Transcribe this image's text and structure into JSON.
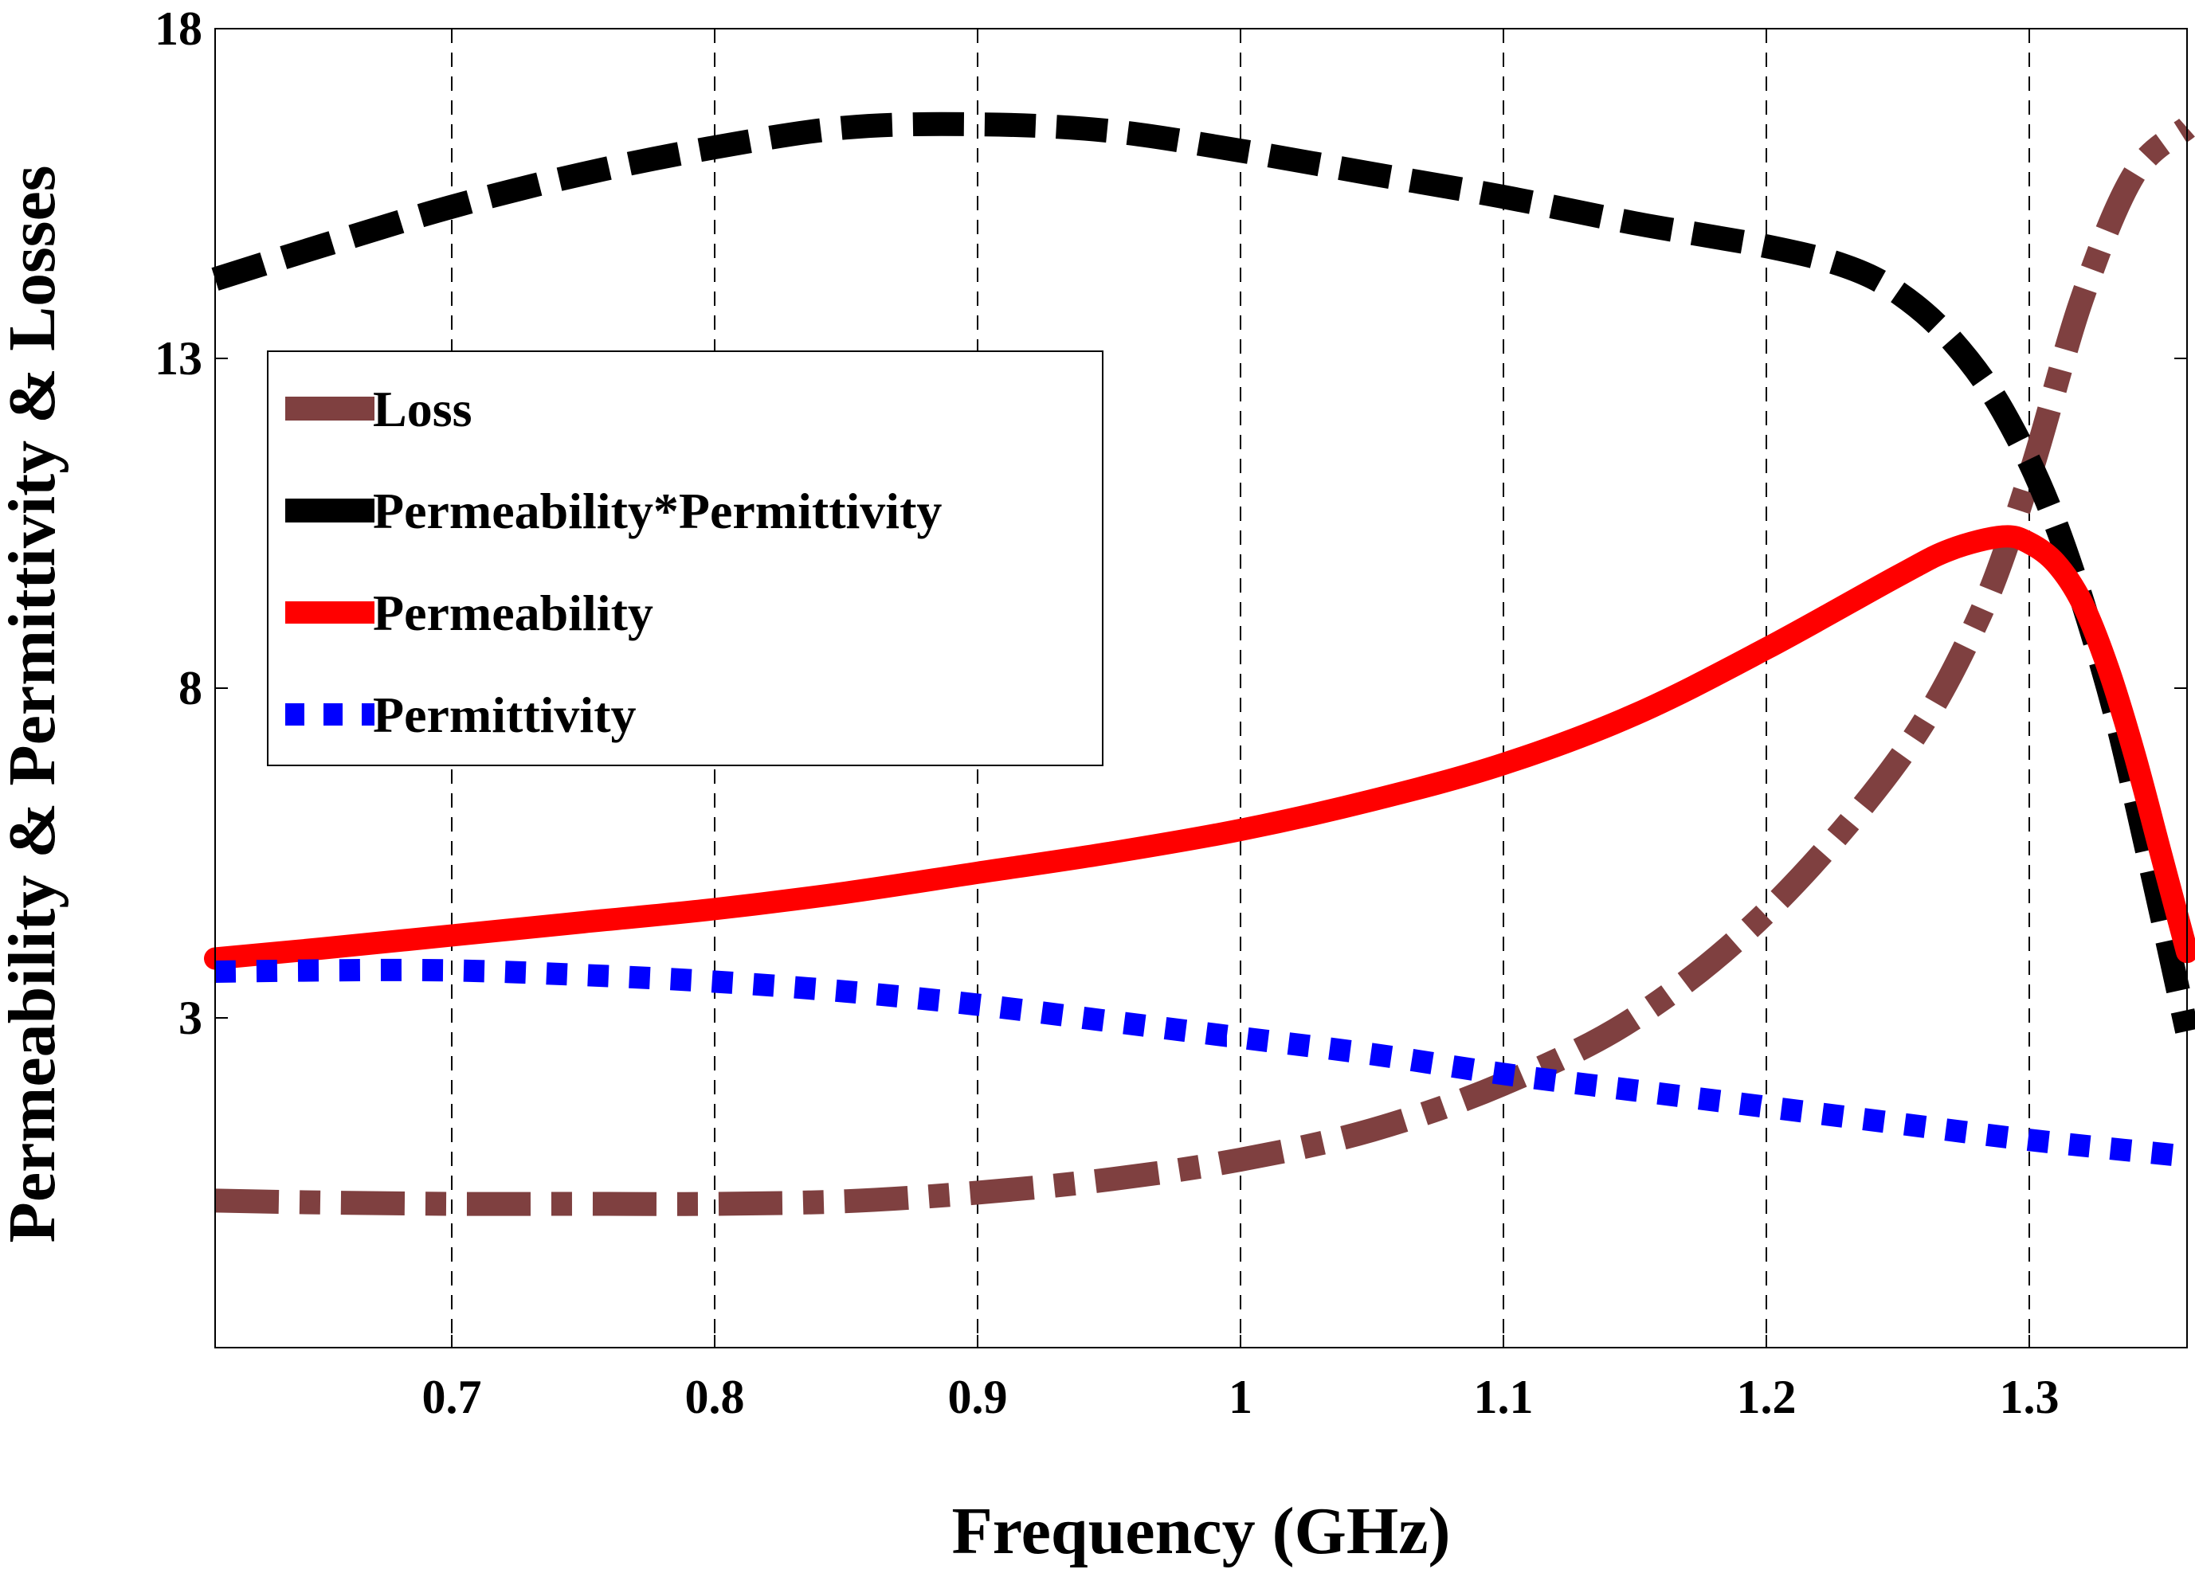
{
  "chart_data": {
    "type": "line",
    "title": "",
    "xlabel": "Frequency (GHz)",
    "ylabel": "Permeability & Permittivity & Losses",
    "xlim": [
      0.61,
      1.36
    ],
    "ylim": [
      -2,
      18
    ],
    "xticks": [
      0.7,
      0.8,
      0.9,
      1,
      1.1,
      1.2,
      1.3
    ],
    "xtick_labels": [
      "0.7",
      "0.8",
      "0.9",
      "1",
      "1.1",
      "1.2",
      "1.3"
    ],
    "yticks": [
      3,
      8,
      13,
      18
    ],
    "ytick_labels": [
      "3",
      "8",
      "13",
      "18"
    ],
    "grid": "vertical dashed",
    "legend_position": "upper-left",
    "series": [
      {
        "name": "Loss",
        "color": "#7f4040",
        "style": "dashdot",
        "x": [
          0.61,
          0.65,
          0.7,
          0.75,
          0.8,
          0.85,
          0.9,
          0.95,
          1.0,
          1.05,
          1.1,
          1.15,
          1.2,
          1.25,
          1.28,
          1.3,
          1.32,
          1.34,
          1.36
        ],
        "y": [
          0.23,
          0.2,
          0.18,
          0.18,
          0.18,
          0.22,
          0.35,
          0.55,
          0.85,
          1.3,
          2.0,
          3.0,
          4.6,
          6.9,
          9.0,
          11.2,
          13.9,
          15.8,
          16.5
        ]
      },
      {
        "name": "Permeability*Permittivity",
        "color": "#000000",
        "style": "dashed",
        "x": [
          0.61,
          0.65,
          0.7,
          0.75,
          0.8,
          0.85,
          0.9,
          0.95,
          1.0,
          1.05,
          1.1,
          1.15,
          1.2,
          1.23,
          1.25,
          1.27,
          1.29,
          1.31,
          1.33,
          1.345,
          1.36
        ],
        "y": [
          14.2,
          14.7,
          15.3,
          15.8,
          16.2,
          16.5,
          16.55,
          16.45,
          16.15,
          15.8,
          15.45,
          15.05,
          14.7,
          14.4,
          14.0,
          13.3,
          12.2,
          10.5,
          8.0,
          5.5,
          2.8
        ]
      },
      {
        "name": "Permeability",
        "color": "#ff0000",
        "style": "solid",
        "x": [
          0.61,
          0.65,
          0.7,
          0.75,
          0.8,
          0.85,
          0.9,
          0.95,
          1.0,
          1.05,
          1.1,
          1.15,
          1.2,
          1.25,
          1.27,
          1.29,
          1.3,
          1.31,
          1.32,
          1.33,
          1.34,
          1.35,
          1.36
        ],
        "y": [
          3.9,
          4.05,
          4.25,
          4.45,
          4.65,
          4.9,
          5.2,
          5.5,
          5.85,
          6.3,
          6.85,
          7.6,
          8.6,
          9.7,
          10.1,
          10.3,
          10.2,
          9.9,
          9.3,
          8.3,
          7.0,
          5.5,
          4.0
        ]
      },
      {
        "name": "Permittivity",
        "color": "#0000ff",
        "style": "dotted",
        "x": [
          0.61,
          0.65,
          0.7,
          0.75,
          0.8,
          0.85,
          0.9,
          0.95,
          1.0,
          1.05,
          1.1,
          1.15,
          1.2,
          1.25,
          1.3,
          1.36
        ],
        "y": [
          3.7,
          3.72,
          3.72,
          3.65,
          3.55,
          3.4,
          3.2,
          2.95,
          2.7,
          2.45,
          2.15,
          1.9,
          1.65,
          1.4,
          1.15,
          0.9
        ]
      }
    ]
  }
}
